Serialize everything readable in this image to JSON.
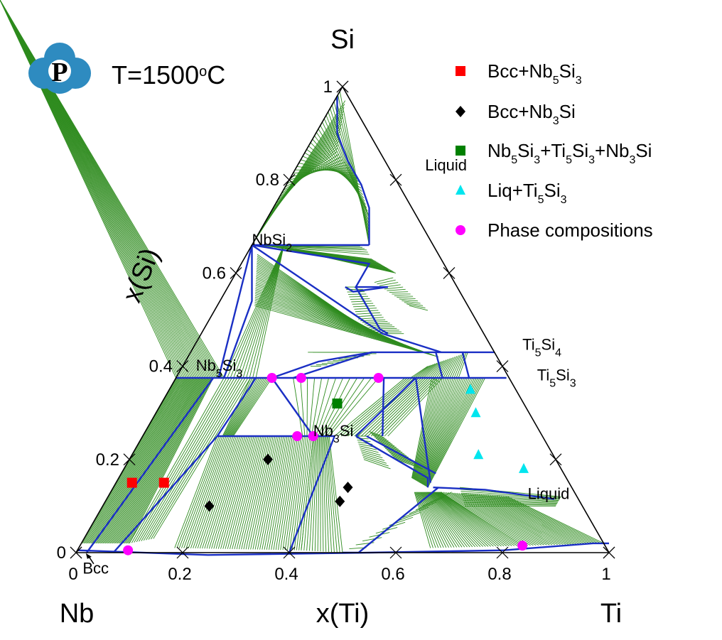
{
  "chart_data": {
    "type": "scatter",
    "diagram": "ternary isothermal section",
    "temperature_label": "T=1500",
    "temperature_unit": "oC",
    "corners": {
      "top": "Si",
      "left": "Nb",
      "right": "Ti"
    },
    "xlabel": "x(Ti)",
    "ylabel": "x(Si)",
    "x_ticks": [
      "0",
      "0.2",
      "0.4",
      "0.6",
      "0.8",
      "1"
    ],
    "y_ticks": [
      "0",
      "0.2",
      "0.4",
      "0.6",
      "0.8",
      "1"
    ],
    "axis_range": [
      0,
      1
    ],
    "colors": {
      "tie_line": "#2e8b1e",
      "phase_boundary": "#1a2fc4",
      "triangle_edge": "#000000"
    },
    "phase_labels": [
      {
        "text": "Liquid",
        "x_ti": 0.245,
        "x_si": 0.82
      },
      {
        "text": "NbSi2",
        "x_ti": 0.0,
        "x_si": 0.66
      },
      {
        "text": "Nb5Si3",
        "x_ti": 0.03,
        "x_si": 0.39
      },
      {
        "text": "Nb3Si",
        "x_ti": 0.32,
        "x_si": 0.25
      },
      {
        "text": "Ti5Si4",
        "x_ti": 0.62,
        "x_si": 0.435
      },
      {
        "text": "Ti5Si3",
        "x_ti": 0.68,
        "x_si": 0.37
      },
      {
        "text": "Liquid",
        "x_ti": 0.79,
        "x_si": 0.115
      },
      {
        "text": "Bcc",
        "x_ti": 0.035,
        "x_si": -0.045
      }
    ],
    "series": [
      {
        "name": "Bcc+Nb5Si3",
        "marker": "square",
        "color": "#ff0000",
        "points": [
          {
            "x": 0.03,
            "y": 0.15
          },
          {
            "x": 0.09,
            "y": 0.15
          }
        ]
      },
      {
        "name": "Bcc+Nb3Si",
        "marker": "diamond",
        "color": "#000000",
        "points": [
          {
            "x": 0.2,
            "y": 0.1
          },
          {
            "x": 0.26,
            "y": 0.2
          },
          {
            "x": 0.44,
            "y": 0.14
          },
          {
            "x": 0.44,
            "y": 0.11
          }
        ]
      },
      {
        "name": "Nb5Si3+Ti5Si3+Nb3Si",
        "marker": "square",
        "color": "#008000",
        "points": [
          {
            "x": 0.33,
            "y": 0.32
          }
        ]
      },
      {
        "name": "Liq+Ti5Si3",
        "marker": "triangle",
        "color": "#00e5ee",
        "points": [
          {
            "x": 0.565,
            "y": 0.35
          },
          {
            "x": 0.6,
            "y": 0.3
          },
          {
            "x": 0.65,
            "y": 0.21
          },
          {
            "x": 0.75,
            "y": 0.18
          }
        ]
      },
      {
        "name": "Phase compositions",
        "marker": "circle",
        "color": "#ff00ff",
        "points": [
          {
            "x": 0.18,
            "y": 0.375
          },
          {
            "x": 0.235,
            "y": 0.375
          },
          {
            "x": 0.38,
            "y": 0.375
          },
          {
            "x": 0.29,
            "y": 0.25
          },
          {
            "x": 0.32,
            "y": 0.25
          },
          {
            "x": 0.095,
            "y": 0.005
          },
          {
            "x": 0.83,
            "y": 0.015
          }
        ]
      }
    ]
  },
  "legend": [
    {
      "base": "Bcc+Nb",
      "sub": "5",
      "mid": "Si",
      "sub2": "3",
      "tail": ""
    },
    {
      "base": "Bcc+Nb",
      "sub": "3",
      "mid": "Si",
      "sub2": "",
      "tail": ""
    },
    {
      "parts": [
        [
          "Nb",
          ""
        ],
        [
          "5",
          "sub"
        ],
        [
          "Si",
          ""
        ],
        [
          "3",
          "sub"
        ],
        [
          "+Ti",
          ""
        ],
        [
          "5",
          "sub"
        ],
        [
          "Si",
          ""
        ],
        [
          "3",
          "sub"
        ],
        [
          "+Nb",
          ""
        ],
        [
          "3",
          "sub"
        ],
        [
          "Si",
          ""
        ]
      ]
    },
    {
      "parts": [
        [
          "Liq+Ti",
          ""
        ],
        [
          "5",
          "sub"
        ],
        [
          "Si",
          ""
        ],
        [
          "3",
          "sub"
        ]
      ]
    },
    {
      "parts": [
        [
          "Phase compositions",
          ""
        ]
      ]
    }
  ],
  "logo": {
    "letter": "P",
    "icon": "phase-diagram-logo"
  }
}
